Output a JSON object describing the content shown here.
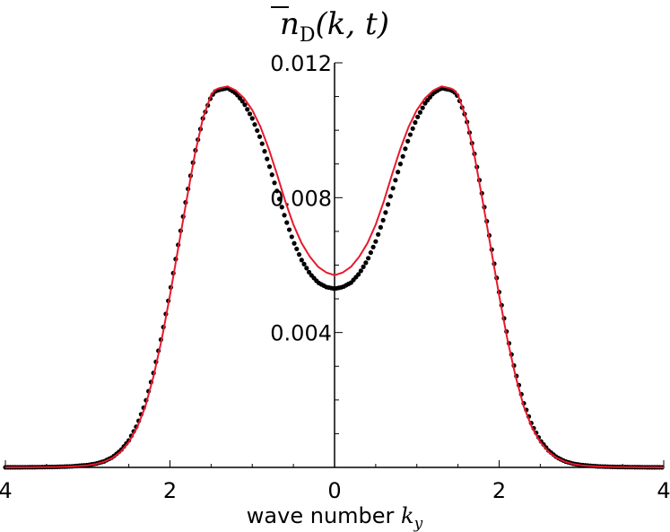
{
  "chart_data": {
    "type": "scatter",
    "title_symbol": "n",
    "title_subscript": "D",
    "title_args": "(k, t)",
    "xlabel_text": "wave number ",
    "xlabel_var": "k",
    "xlabel_sub": "y",
    "xlim": [
      -4,
      4
    ],
    "ylim": [
      0,
      0.012
    ],
    "x_ticks": [
      {
        "value": -4,
        "label": "4"
      },
      {
        "value": -2,
        "label": "2"
      },
      {
        "value": 0,
        "label": "0"
      },
      {
        "value": 2,
        "label": "2"
      },
      {
        "value": 4,
        "label": "4"
      }
    ],
    "y_ticks": [
      {
        "value": 0.004,
        "label": "0.004"
      },
      {
        "value": 0.008,
        "label": "0.008"
      },
      {
        "value": 0.012,
        "label": "0.012"
      }
    ],
    "grid": false,
    "series": [
      {
        "kind": "points",
        "color": "#000000",
        "x": [
          0,
          0.1,
          0.2,
          0.3,
          0.4,
          0.5,
          0.6,
          0.7,
          0.8,
          0.9,
          1.0,
          1.1,
          1.2,
          1.3,
          1.4,
          1.45,
          1.5,
          1.6,
          1.7,
          1.8,
          1.9,
          2.0,
          2.1,
          2.2,
          2.3,
          2.4,
          2.5,
          2.6,
          2.7,
          2.8,
          2.9,
          3.0,
          3.2,
          3.4,
          3.6,
          3.8,
          4.0
        ],
        "y": [
          0.0053,
          0.00535,
          0.00548,
          0.00575,
          0.00615,
          0.0067,
          0.0074,
          0.0082,
          0.009,
          0.00975,
          0.01035,
          0.0108,
          0.0111,
          0.01125,
          0.0112,
          0.01115,
          0.011,
          0.01035,
          0.0093,
          0.008,
          0.0066,
          0.0052,
          0.0039,
          0.0028,
          0.0019,
          0.00125,
          0.0008,
          0.0005,
          0.0003,
          0.00018,
          0.00011,
          7e-05,
          3e-05,
          1.5e-05,
          8e-06,
          4e-06,
          2e-06
        ]
      },
      {
        "kind": "line",
        "color": "#e8192c",
        "x": [
          0,
          0.1,
          0.2,
          0.3,
          0.4,
          0.5,
          0.6,
          0.7,
          0.8,
          0.9,
          1.0,
          1.1,
          1.2,
          1.3,
          1.4,
          1.45,
          1.5,
          1.6,
          1.7,
          1.8,
          1.9,
          2.0,
          2.1,
          2.2,
          2.3,
          2.4,
          2.5,
          2.6,
          2.7,
          2.8,
          2.9,
          3.0,
          3.2,
          3.4,
          3.6,
          3.8,
          4.0
        ],
        "y": [
          0.0057,
          0.00578,
          0.00595,
          0.00625,
          0.00665,
          0.0072,
          0.0079,
          0.0087,
          0.00945,
          0.0101,
          0.0106,
          0.01095,
          0.01118,
          0.0113,
          0.01125,
          0.0112,
          0.01105,
          0.01035,
          0.00925,
          0.0079,
          0.0065,
          0.0051,
          0.0038,
          0.0027,
          0.0018,
          0.00118,
          0.00075,
          0.00046,
          0.00028,
          0.00017,
          0.0001,
          6e-05,
          2.5e-05,
          1.2e-05,
          6e-06,
          3e-06,
          1e-06
        ]
      }
    ]
  }
}
